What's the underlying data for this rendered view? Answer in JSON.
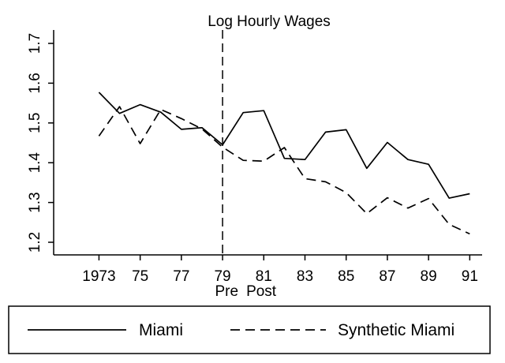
{
  "chart_data": {
    "type": "line",
    "title": "Log Hourly Wages",
    "x": [
      1973,
      1974,
      1975,
      1976,
      1977,
      1978,
      1979,
      1980,
      1981,
      1982,
      1983,
      1984,
      1985,
      1986,
      1987,
      1988,
      1989,
      1990,
      1991
    ],
    "xlim": [
      1970.8,
      1991.6
    ],
    "ylim": [
      1.2,
      1.7
    ],
    "x_tick_values": [
      1973,
      1975,
      1977,
      1979,
      1981,
      1983,
      1985,
      1987,
      1989,
      1991
    ],
    "x_tick_labels": [
      "1973",
      "75",
      "77",
      "79",
      "81",
      "83",
      "85",
      "87",
      "89",
      "91"
    ],
    "y_tick_values": [
      1.2,
      1.3,
      1.4,
      1.5,
      1.6,
      1.7
    ],
    "y_tick_labels": [
      "1.2",
      "1.3",
      "1.4",
      "1.5",
      "1.6",
      "1.7"
    ],
    "series": [
      {
        "name": "Miami",
        "style": "solid",
        "values": [
          1.577,
          1.524,
          1.546,
          1.527,
          1.484,
          1.488,
          1.445,
          1.526,
          1.531,
          1.411,
          1.408,
          1.477,
          1.483,
          1.386,
          1.451,
          1.408,
          1.396,
          1.311,
          1.322
        ]
      },
      {
        "name": "Synthetic Miami",
        "style": "dashed",
        "values": [
          1.467,
          1.541,
          1.448,
          1.534,
          1.511,
          1.485,
          1.439,
          1.406,
          1.404,
          1.438,
          1.36,
          1.352,
          1.325,
          1.272,
          1.312,
          1.286,
          1.31,
          1.245,
          1.221
        ]
      }
    ],
    "vline": {
      "x": 1979,
      "style": "dashed"
    },
    "annotations": {
      "pre": "Pre",
      "post": "Post"
    },
    "grid": false,
    "legend_position": "bottom"
  }
}
